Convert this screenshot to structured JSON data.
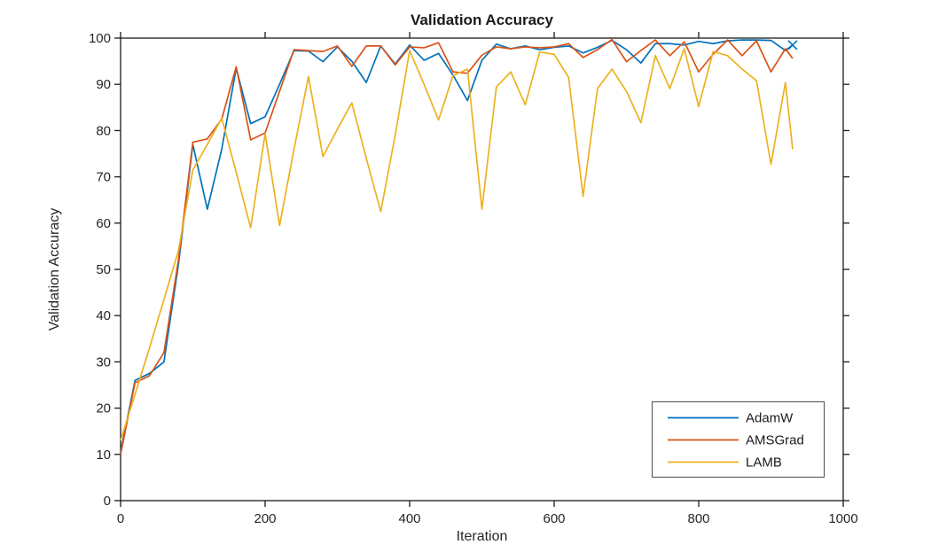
{
  "title": "Validation Accuracy",
  "xlabel": "Iteration",
  "ylabel": "Validation Accuracy",
  "legend": {
    "entries": [
      "AdamW",
      "AMSGrad",
      "LAMB"
    ],
    "position": "lower-right-inside"
  },
  "axis_color": "#1a1a1a",
  "tick_label_color": "#262626",
  "chart_data": {
    "type": "line",
    "title": "Validation Accuracy",
    "xlabel": "Iteration",
    "ylabel": "Validation Accuracy",
    "xlim": [
      0,
      1000
    ],
    "ylim": [
      0,
      100
    ],
    "x_ticks": [
      0,
      200,
      400,
      600,
      800,
      1000
    ],
    "y_ticks": [
      0,
      10,
      20,
      30,
      40,
      50,
      60,
      70,
      80,
      90,
      100
    ],
    "grid": false,
    "legend_position": "lower right",
    "x": [
      0,
      20,
      40,
      60,
      80,
      100,
      120,
      140,
      160,
      180,
      200,
      220,
      240,
      260,
      280,
      300,
      320,
      340,
      360,
      380,
      400,
      420,
      440,
      460,
      480,
      500,
      520,
      540,
      560,
      580,
      600,
      620,
      640,
      660,
      680,
      700,
      720,
      740,
      760,
      780,
      800,
      820,
      840,
      860,
      880,
      900,
      920,
      930
    ],
    "series": [
      {
        "name": "AdamW",
        "color": "#0072BD",
        "end_marker": "x",
        "values": [
          10.5,
          26,
          27.5,
          30,
          51,
          77,
          63,
          76,
          93.5,
          81.5,
          83,
          90,
          97.3,
          97.2,
          94.9,
          98.1,
          95,
          90.4,
          98.3,
          94.4,
          98.5,
          95.2,
          96.7,
          92,
          86.5,
          95.2,
          98.7,
          97.7,
          98.3,
          97.5,
          98,
          98.3,
          96.8,
          98,
          99.5,
          97.5,
          94.6,
          98.8,
          98.8,
          98.5,
          99.3,
          98.8,
          99.4,
          99.6,
          99.6,
          99.5,
          97.3,
          98.5
        ]
      },
      {
        "name": "AMSGrad",
        "color": "#D95319",
        "end_marker": "",
        "values": [
          10,
          25.5,
          27,
          32,
          52,
          77.5,
          78.2,
          82.5,
          93.8,
          78,
          79.5,
          88.5,
          97.5,
          97.3,
          97.1,
          98.3,
          93.9,
          98.3,
          98.3,
          94.2,
          98.1,
          97.9,
          99,
          92.7,
          92.4,
          96.3,
          98.1,
          97.7,
          98.1,
          97.9,
          98.1,
          98.8,
          95.8,
          97.5,
          99.7,
          94.9,
          97.3,
          99.6,
          96.2,
          99.2,
          92.7,
          96.5,
          99.6,
          96.2,
          99.4,
          92.7,
          97.7,
          95.6
        ]
      },
      {
        "name": "LAMB",
        "color": "#EDB120",
        "end_marker": "",
        "values": [
          13,
          23,
          33,
          43.5,
          54,
          71.5,
          77,
          82.7,
          71,
          59,
          79.3,
          59.5,
          76,
          91.7,
          74.4,
          80.3,
          86,
          74,
          62.5,
          79,
          97.3,
          90,
          82.3,
          91.9,
          93.3,
          63,
          89.4,
          92.7,
          85.6,
          97,
          96.5,
          91.5,
          65.8,
          89.1,
          93.3,
          88.5,
          81.7,
          96.2,
          89.1,
          97.7,
          85.2,
          97.1,
          96.2,
          93.3,
          90.8,
          72.7,
          90.4,
          76
        ]
      }
    ]
  }
}
